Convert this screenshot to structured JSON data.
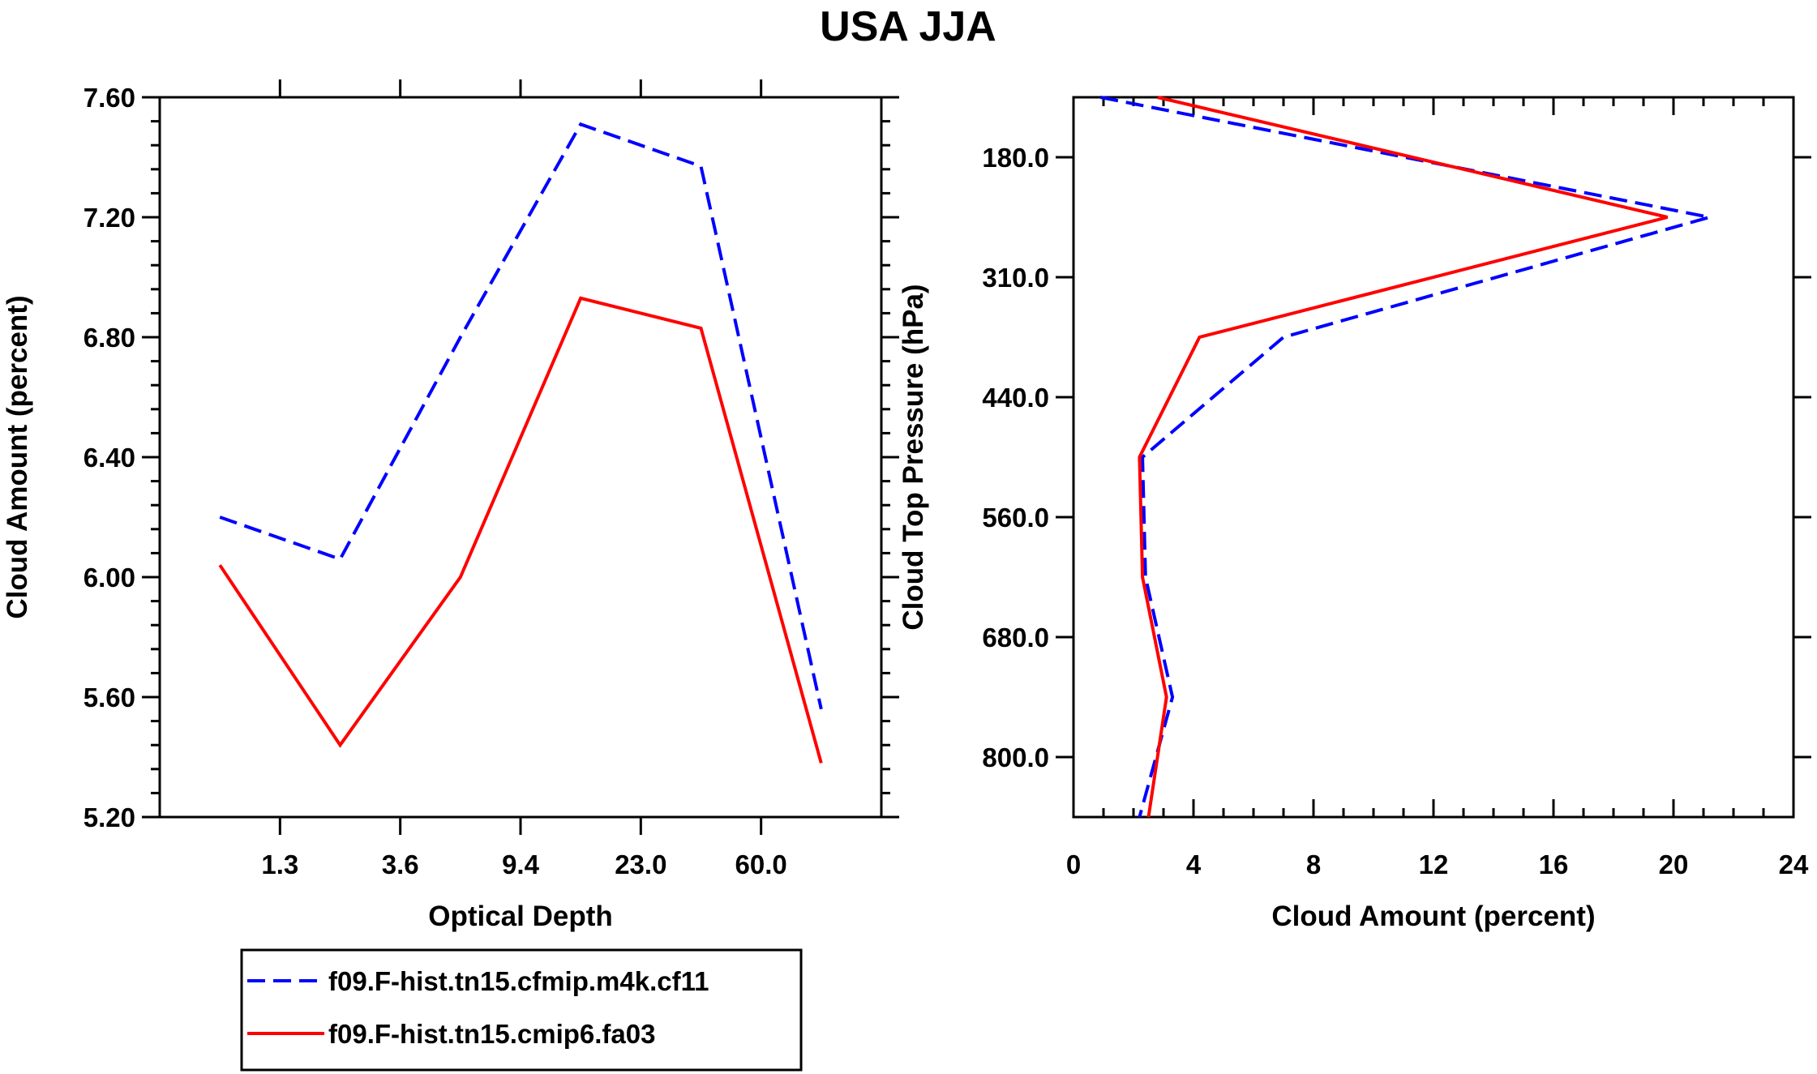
{
  "title": "USA JJA",
  "legend": [
    {
      "label": "f09.F-hist.tn15.cfmip.m4k.cf11",
      "color": "#0000ff",
      "style": "dashed"
    },
    {
      "label": "f09.F-hist.tn15.cmip6.fa03",
      "color": "#ff0000",
      "style": "solid"
    }
  ],
  "chart_data": [
    {
      "type": "line",
      "title": "",
      "xlabel": "Optical Depth",
      "ylabel": "Cloud Amount (percent)",
      "x_tick_labels": [
        "1.3",
        "3.6",
        "9.4",
        "23.0",
        "60.0"
      ],
      "y_tick_labels": [
        "7.60",
        "7.20",
        "6.80",
        "6.40",
        "6.00",
        "5.60",
        "5.20"
      ],
      "x_bins": [
        0,
        1,
        2,
        3,
        4,
        5
      ],
      "xlim": [
        -0.5,
        5.5
      ],
      "ylim": [
        5.2,
        7.6
      ],
      "series": [
        {
          "name": "f09.F-hist.tn15.cfmip.m4k.cf11",
          "color": "#0000ff",
          "style": "dashed",
          "values": [
            6.2,
            6.06,
            6.8,
            7.51,
            7.37,
            5.56
          ]
        },
        {
          "name": "f09.F-hist.tn15.cmip6.fa03",
          "color": "#ff0000",
          "style": "solid",
          "values": [
            6.04,
            5.44,
            6.0,
            6.93,
            6.83,
            5.38
          ]
        }
      ]
    },
    {
      "type": "line",
      "title": "",
      "xlabel": "Cloud Amount (percent)",
      "ylabel": "Cloud Top Pressure (hPa)",
      "x_tick_labels": [
        "0",
        "4",
        "8",
        "12",
        "16",
        "20",
        "24"
      ],
      "y_tick_labels": [
        "180.0",
        "310.0",
        "440.0",
        "560.0",
        "680.0",
        "800.0"
      ],
      "xlim": [
        0,
        24
      ],
      "ylim_index": [
        0,
        6
      ],
      "pressure_levels": [
        1,
        2,
        3,
        4,
        5,
        6
      ],
      "series": [
        {
          "name": "f09.F-hist.tn15.cfmip.m4k.cf11",
          "color": "#0000ff",
          "style": "dashed",
          "x": [
            0.9,
            21.2,
            7.0,
            2.3,
            2.4,
            3.3,
            2.2
          ],
          "level_index": [
            0,
            1,
            2,
            3,
            4,
            5,
            6
          ]
        },
        {
          "name": "f09.F-hist.tn15.cmip6.fa03",
          "color": "#ff0000",
          "style": "solid",
          "x": [
            2.8,
            19.8,
            4.2,
            2.2,
            2.3,
            3.1,
            2.5
          ],
          "level_index": [
            0,
            1,
            2,
            3,
            4,
            5,
            6
          ]
        }
      ]
    }
  ]
}
